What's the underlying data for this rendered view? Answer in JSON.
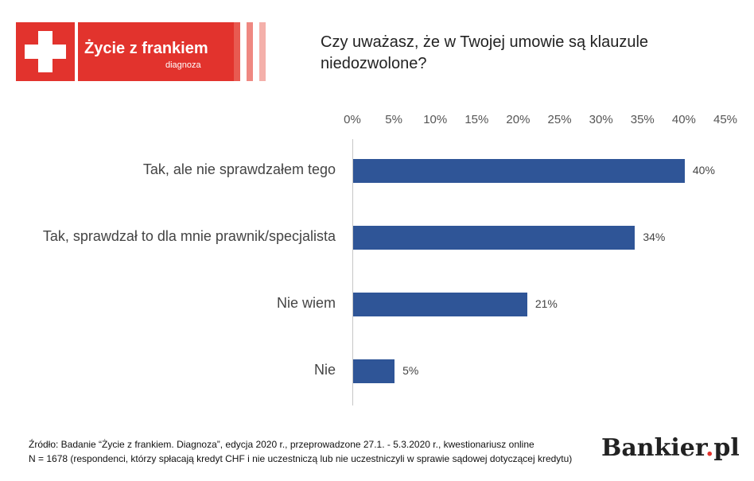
{
  "logo": {
    "title": "Życie z frankiem",
    "subtitle": "diagnoza"
  },
  "question": "Czy uważasz, że w Twojej umowie są klauzule niedozwolone?",
  "chart_data": {
    "type": "bar",
    "orientation": "horizontal",
    "title": "Czy uważasz, że w Twojej umowie są klauzule niedozwolone?",
    "categories": [
      "Tak, ale nie sprawdzałem tego",
      "Tak, sprawdzał to dla mnie prawnik/specjalista",
      "Nie wiem",
      "Nie"
    ],
    "values": [
      40,
      34,
      21,
      5
    ],
    "value_labels": [
      "40%",
      "34%",
      "21%",
      "5%"
    ],
    "xlim": [
      0,
      45
    ],
    "x_ticks": [
      0,
      5,
      10,
      15,
      20,
      25,
      30,
      35,
      40,
      45
    ],
    "x_tick_labels": [
      "0%",
      "5%",
      "10%",
      "15%",
      "20%",
      "25%",
      "30%",
      "35%",
      "40%",
      "45%"
    ],
    "x_axis_position": "top",
    "bar_color": "#2f5597",
    "grid": false,
    "legend": "none"
  },
  "footer": {
    "source_line1": "Źródło: Badanie “Życie z frankiem. Diagnoza”, edycja 2020 r., przeprowadzone 27.1. - 5.3.2020 r., kwestionariusz online",
    "source_line2": "N = 1678 (respondenci, którzy spłacają kredyt CHF i nie uczestniczą lub nie uczestniczyli w sprawie sądowej dotyczącej kredytu)",
    "brand_name": "Bankier",
    "brand_dot": ".",
    "brand_tld": "pl"
  },
  "colors": {
    "brand_red": "#e2332d",
    "bar_blue": "#2f5597"
  }
}
